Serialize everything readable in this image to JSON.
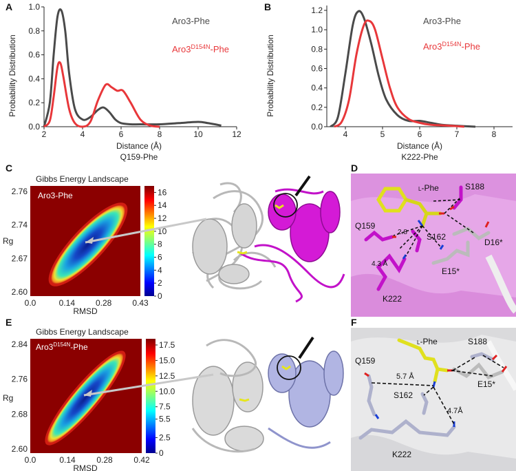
{
  "panels": {
    "A": "A",
    "B": "B",
    "C": "C",
    "D": "D",
    "E": "E",
    "F": "F"
  },
  "colors": {
    "aro3": "#4a4a4a",
    "mutant": "#e8373a",
    "magenta": "#c212c9",
    "lavender": "#a9aee0",
    "yellow": "#e6e61c",
    "grey_protein": "#c9c9c9"
  },
  "chart_data": [
    {
      "id": "A",
      "type": "line",
      "title": "",
      "xlabel": "Distance (Å)",
      "ylabel": "Probability Distribution",
      "caption": "Q159-Phe",
      "xlim": [
        2,
        12
      ],
      "ylim": [
        0,
        1.0
      ],
      "xticks": [
        "2",
        "4",
        "6",
        "8",
        "10",
        "12"
      ],
      "yticks": [
        "0.0",
        "0.2",
        "0.4",
        "0.6",
        "0.8",
        "1.0"
      ],
      "legend": [
        "Aro3-Phe",
        "Aro3D154N-Phe"
      ],
      "series": [
        {
          "name": "Aro3-Phe",
          "color": "#4a4a4a",
          "x": [
            2.0,
            2.3,
            2.5,
            2.7,
            2.9,
            3.1,
            3.3,
            3.6,
            4.0,
            4.4,
            4.8,
            5.1,
            5.4,
            5.7,
            6.0,
            6.5,
            7.0,
            8.0,
            9.0,
            10.0,
            10.5,
            11.2
          ],
          "y": [
            0.0,
            0.2,
            0.6,
            0.92,
            0.97,
            0.8,
            0.45,
            0.15,
            0.06,
            0.08,
            0.14,
            0.16,
            0.12,
            0.06,
            0.03,
            0.02,
            0.02,
            0.02,
            0.03,
            0.04,
            0.03,
            0.01
          ]
        },
        {
          "name": "Aro3D154N-Phe",
          "color": "#e8373a",
          "x": [
            2.0,
            2.3,
            2.5,
            2.7,
            2.85,
            3.0,
            3.3,
            3.6,
            4.0,
            4.4,
            4.8,
            5.2,
            5.5,
            5.8,
            6.1,
            6.5,
            7.0,
            7.5,
            8.0
          ],
          "y": [
            0.0,
            0.05,
            0.25,
            0.5,
            0.53,
            0.42,
            0.15,
            0.03,
            0.0,
            0.04,
            0.22,
            0.35,
            0.33,
            0.3,
            0.3,
            0.2,
            0.06,
            0.01,
            0.0
          ]
        }
      ]
    },
    {
      "id": "B",
      "type": "line",
      "title": "",
      "xlabel": "Distance (Å)",
      "ylabel": "Probability Distribution",
      "caption": "K222-Phe",
      "xlim": [
        3.5,
        8.5
      ],
      "ylim": [
        0,
        1.25
      ],
      "xticks": [
        "4",
        "5",
        "6",
        "7",
        "8"
      ],
      "yticks": [
        "0.0",
        "0.2",
        "0.4",
        "0.6",
        "0.8",
        "1.0",
        "1.2"
      ],
      "legend": [
        "Aro3-Phe",
        "Aro3D154N-Phe"
      ],
      "series": [
        {
          "name": "Aro3-Phe",
          "color": "#4a4a4a",
          "x": [
            3.6,
            3.8,
            4.0,
            4.2,
            4.35,
            4.5,
            4.7,
            4.9,
            5.1,
            5.4,
            5.7,
            6.0,
            6.3,
            6.6,
            7.0,
            7.5
          ],
          "y": [
            0.0,
            0.1,
            0.55,
            1.05,
            1.19,
            1.12,
            0.85,
            0.52,
            0.28,
            0.12,
            0.06,
            0.06,
            0.04,
            0.02,
            0.01,
            0.0
          ]
        },
        {
          "name": "Aro3D154N-Phe",
          "color": "#e8373a",
          "x": [
            3.7,
            3.9,
            4.1,
            4.3,
            4.5,
            4.65,
            4.8,
            5.0,
            5.2,
            5.4,
            5.7,
            6.0,
            6.3,
            6.8,
            7.2
          ],
          "y": [
            0.0,
            0.05,
            0.28,
            0.75,
            1.05,
            1.09,
            1.0,
            0.7,
            0.4,
            0.2,
            0.08,
            0.04,
            0.02,
            0.01,
            0.0
          ]
        }
      ]
    },
    {
      "id": "C",
      "type": "heatmap",
      "title": "Gibbs Energy Landscape",
      "label": "Aro3-Phe",
      "xlabel": "RMSD",
      "ylabel": "Rg",
      "xticks": [
        "0.0",
        "0.14",
        "0.28",
        "0.43"
      ],
      "yticks": [
        "2.76",
        "2.74",
        "2.67",
        "2.60"
      ],
      "colorbar_ticks": [
        "16",
        "14",
        "12",
        "10",
        "8",
        "6",
        "4",
        "2",
        "0"
      ],
      "colorbar_range": [
        0,
        17
      ]
    },
    {
      "id": "E",
      "type": "heatmap",
      "title": "Gibbs Energy Landscape",
      "label": "Aro3D154N-Phe",
      "xlabel": "RMSD",
      "ylabel": "Rg",
      "xticks": [
        "0.0",
        "0.14",
        "0.28",
        "0.42"
      ],
      "yticks": [
        "2.84",
        "2.76",
        "2.68",
        "2.60"
      ],
      "colorbar_ticks": [
        "17.5",
        "15.0",
        "12.5",
        "10.0",
        "7.5",
        "5.5",
        "2.5",
        "0"
      ],
      "colorbar_range": [
        0,
        18.5
      ]
    }
  ],
  "structure_D": {
    "labels": {
      "lphe": "L-Phe",
      "s188": "S188",
      "q159": "Q159",
      "d16": "D16*",
      "s162": "S162",
      "e15": "E15*",
      "k222": "K222",
      "d1": "2.8",
      "d2": "4.3 Å"
    }
  },
  "structure_F": {
    "labels": {
      "lphe": "L-Phe",
      "s188": "S188",
      "q159": "Q159",
      "s162": "S162",
      "e15": "E15*",
      "k222": "K222",
      "d1": "5.7 Å",
      "d2": "4.7Å"
    }
  }
}
